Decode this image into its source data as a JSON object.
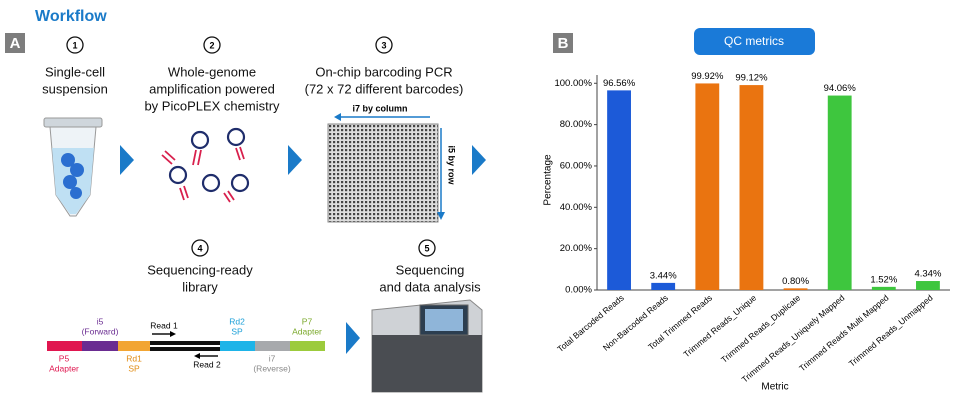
{
  "title": "Workflow",
  "panels": {
    "a": "A",
    "b": "B"
  },
  "steps": [
    {
      "number": 1,
      "label": [
        "Single-cell",
        "suspension"
      ]
    },
    {
      "number": 2,
      "label": [
        "Whole-genome",
        "amplification powered",
        "by PicoPLEX chemistry"
      ]
    },
    {
      "number": 3,
      "label": [
        "On-chip barcoding PCR",
        "(72 x 72 different barcodes)"
      ]
    },
    {
      "number": 4,
      "label": [
        "Sequencing-ready",
        "library"
      ]
    },
    {
      "number": 5,
      "label": [
        "Sequencing",
        "and data analysis"
      ]
    }
  ],
  "chip": {
    "column": "i7 by column",
    "row": "i5 by row"
  },
  "library": {
    "p5": [
      "P5",
      "Adapter"
    ],
    "i5": [
      "i5",
      "(Forward)"
    ],
    "rd1": [
      "Rd1",
      "SP"
    ],
    "rd2": [
      "Rd2",
      "SP"
    ],
    "i7": [
      "i7",
      "(Reverse)"
    ],
    "p7": [
      "P7",
      "Adapter"
    ],
    "read1": "Read 1",
    "read2": "Read 2"
  },
  "chart_data": {
    "type": "bar",
    "title": "QC metrics",
    "y_label": "Percentage",
    "x_label": "Metric",
    "categories": [
      "Total Barcoded Reads",
      "Non-Barcoded Reads",
      "Total Trimmed Reads",
      "Trimmed Reads_Unique",
      "Trimmed Reads_Duplicate",
      "Trimmed Reads_Uniquely Mapped",
      "Trimmed Reads Multi Mapped",
      "Trimmed Reads_Unmapped"
    ],
    "values": [
      96.56,
      3.44,
      99.92,
      99.12,
      0.8,
      94.06,
      1.52,
      4.34
    ],
    "value_labels": [
      "96.56%",
      "3.44%",
      "99.92%",
      "99.12%",
      "0.80%",
      "94.06%",
      "1.52%",
      "4.34%"
    ],
    "colors": [
      "#1c5ad8",
      "#1c5ad8",
      "#ea7410",
      "#ea7410",
      "#ea7410",
      "#3ec63e",
      "#3ec63e",
      "#3ec63e"
    ],
    "ylim": [
      0,
      104
    ],
    "yticks": [
      {
        "value": 0,
        "label": "0.00%"
      },
      {
        "value": 20,
        "label": "20.00%"
      },
      {
        "value": 40,
        "label": "40.00%"
      },
      {
        "value": 60,
        "label": "60.00%"
      },
      {
        "value": 80,
        "label": "80.00%"
      },
      {
        "value": 100,
        "label": "100.00%"
      }
    ]
  }
}
